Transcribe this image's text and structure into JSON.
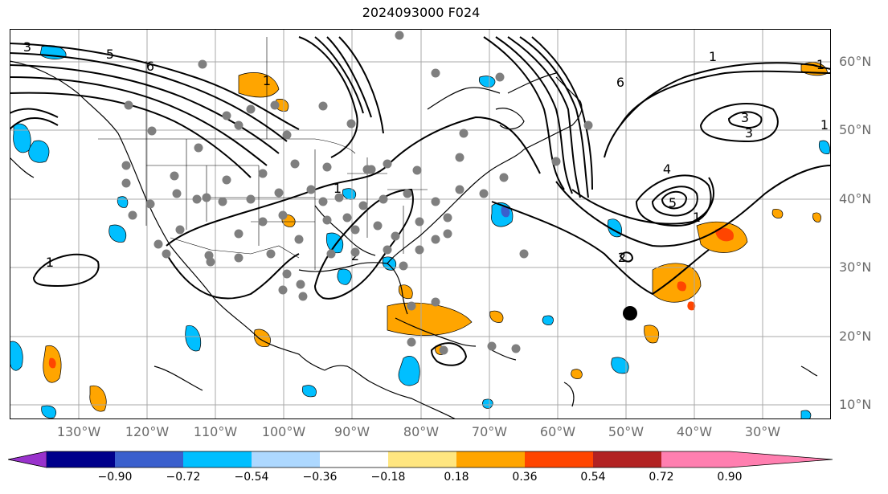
{
  "title": "2024093000 F024",
  "lat_labels": [
    "60°N",
    "50°N",
    "40°N",
    "30°N",
    "20°N",
    "10°N"
  ],
  "lon_labels": [
    "130°W",
    "120°W",
    "110°W",
    "100°W",
    "90°W",
    "80°W",
    "70°W",
    "60°W",
    "50°W",
    "40°W",
    "30°W"
  ],
  "colorbar": {
    "ticks": [
      "−0.90",
      "−0.72",
      "−0.54",
      "−0.36",
      "−0.18",
      "0.18",
      "0.36",
      "0.54",
      "0.72",
      "0.90"
    ],
    "colors": [
      "#9932cc",
      "#00008b",
      "#3a5fcd",
      "#00bfff",
      "#add8ff",
      "#ffffff",
      "#ffe680",
      "#ffa500",
      "#ff4500",
      "#b22222",
      "#ff7fb0"
    ]
  },
  "contour_labels": [
    "1",
    "1",
    "1",
    "1",
    "1",
    "1",
    "1",
    "2",
    "2",
    "3",
    "3",
    "3",
    "4",
    "5",
    "5",
    "6",
    "6"
  ],
  "fill_colors": {
    "positive_light": "#ffa500",
    "positive_strong": "#ff4500",
    "negative_light": "#00bfff",
    "negative_strong": "#3a5fcd"
  },
  "marker_color": "#7f7f7f",
  "storm_marker": {
    "lon": -50,
    "lat": 23.5,
    "color": "#000000"
  }
}
